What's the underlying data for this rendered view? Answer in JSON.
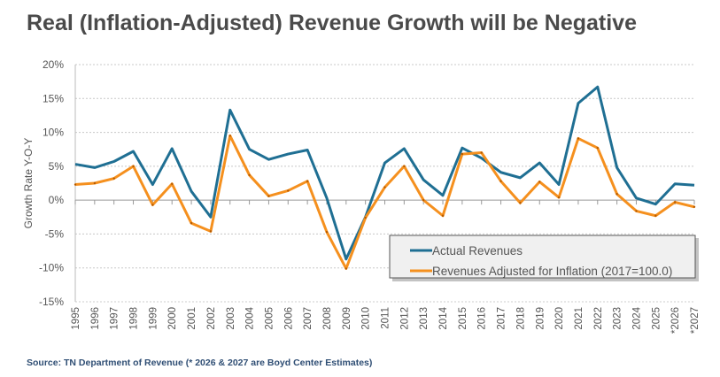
{
  "title": "Real (Inflation-Adjusted) Revenue Growth will be Negative",
  "source": "Source: TN Department of Revenue (* 2026 & 2027 are Boyd Center Estimates)",
  "chart_data": {
    "type": "line",
    "title": "Real (Inflation-Adjusted) Revenue Growth will be Negative",
    "xlabel": "",
    "ylabel": "Growth Rate Y-O-Y",
    "ylim": [
      -15,
      20
    ],
    "yticks": [
      20,
      15,
      10,
      5,
      0,
      -5,
      -10,
      -15
    ],
    "ytick_labels": [
      "20%",
      "15%",
      "10%",
      "5%",
      "0%",
      "-5%",
      "-10%",
      "-15%"
    ],
    "grid": true,
    "legend_position": "bottom-right",
    "categories": [
      "1995",
      "1996",
      "1997",
      "1998",
      "1999",
      "2000",
      "2001",
      "2002",
      "2003",
      "2004",
      "2005",
      "2006",
      "2007",
      "2008",
      "2009",
      "2010",
      "2011",
      "2012",
      "2013",
      "2014",
      "2015",
      "2016",
      "2017",
      "2018",
      "2019",
      "2020",
      "2021",
      "2022",
      "2023",
      "2024",
      "2025",
      "*2026",
      "*2027"
    ],
    "series": [
      {
        "name": "Actual Revenues",
        "color": "#1f6f93",
        "values": [
          5.3,
          4.8,
          5.7,
          7.2,
          2.3,
          7.6,
          1.3,
          -2.5,
          13.3,
          7.5,
          6.0,
          6.8,
          7.4,
          0.3,
          -8.7,
          -2.5,
          5.5,
          7.6,
          3.0,
          0.7,
          7.7,
          6.2,
          4.1,
          3.3,
          5.5,
          2.3,
          14.3,
          16.7,
          4.8,
          0.3,
          -0.6,
          2.4,
          2.2
        ]
      },
      {
        "name": "Revenues Adjusted for Inflation (2017=100.0)",
        "color": "#f5901e",
        "values": [
          2.3,
          2.5,
          3.2,
          5.0,
          -0.7,
          2.4,
          -3.4,
          -4.6,
          9.5,
          3.7,
          0.6,
          1.4,
          2.8,
          -4.7,
          -10.1,
          -2.6,
          1.9,
          5.0,
          0.0,
          -2.3,
          6.8,
          7.0,
          2.8,
          -0.4,
          2.7,
          0.4,
          9.1,
          7.7,
          0.9,
          -1.6,
          -2.3,
          -0.3,
          -1.0
        ]
      }
    ]
  }
}
